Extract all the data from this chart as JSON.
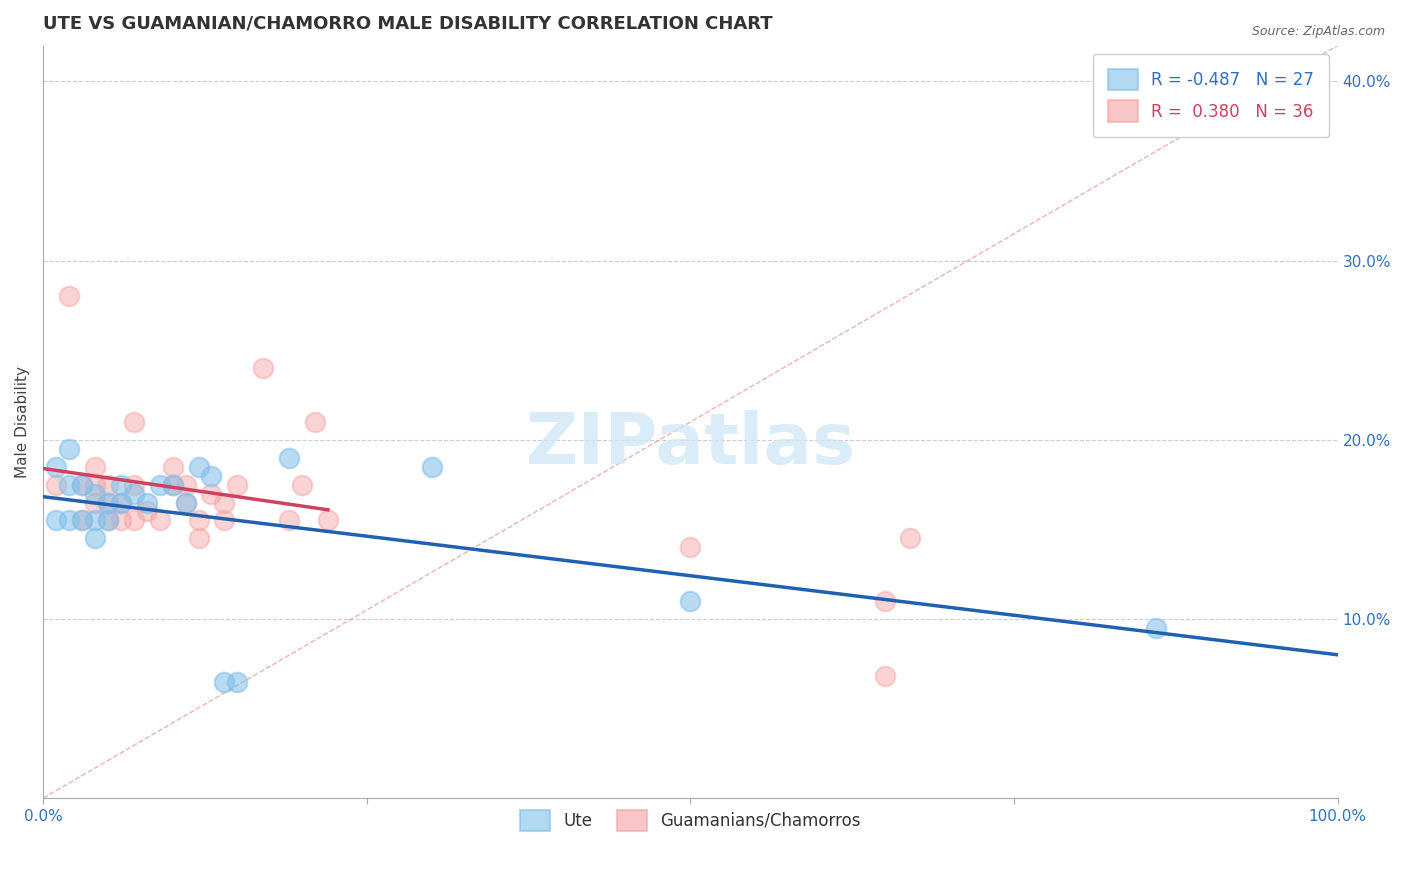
{
  "title": "UTE VS GUAMANIAN/CHAMORRO MALE DISABILITY CORRELATION CHART",
  "source": "Source: ZipAtlas.com",
  "xlabel": "",
  "ylabel": "Male Disability",
  "xlim": [
    0.0,
    1.0
  ],
  "ylim": [
    0.0,
    0.42
  ],
  "xtick_labels": [
    "0.0%",
    "",
    "",
    "",
    "100.0%"
  ],
  "ytick_labels_right": [
    "",
    "10.0%",
    "20.0%",
    "30.0%",
    "40.0%"
  ],
  "grid_color": "#cccccc",
  "background_color": "#ffffff",
  "ute_color": "#7fbfea",
  "guam_color": "#f4a0a0",
  "ute_R": -0.487,
  "ute_N": 27,
  "guam_R": 0.38,
  "guam_N": 36,
  "ute_scatter_x": [
    0.01,
    0.01,
    0.02,
    0.02,
    0.02,
    0.03,
    0.03,
    0.04,
    0.04,
    0.04,
    0.05,
    0.05,
    0.06,
    0.06,
    0.07,
    0.08,
    0.09,
    0.1,
    0.11,
    0.12,
    0.13,
    0.14,
    0.15,
    0.19,
    0.3,
    0.5,
    0.86
  ],
  "ute_scatter_y": [
    0.185,
    0.155,
    0.195,
    0.175,
    0.155,
    0.175,
    0.155,
    0.17,
    0.155,
    0.145,
    0.165,
    0.155,
    0.175,
    0.165,
    0.17,
    0.165,
    0.175,
    0.175,
    0.165,
    0.185,
    0.18,
    0.065,
    0.065,
    0.19,
    0.185,
    0.11,
    0.095
  ],
  "guam_scatter_x": [
    0.01,
    0.02,
    0.03,
    0.03,
    0.04,
    0.04,
    0.04,
    0.05,
    0.05,
    0.05,
    0.06,
    0.06,
    0.07,
    0.07,
    0.07,
    0.08,
    0.09,
    0.1,
    0.1,
    0.11,
    0.11,
    0.12,
    0.12,
    0.13,
    0.14,
    0.14,
    0.15,
    0.17,
    0.19,
    0.2,
    0.21,
    0.22,
    0.5,
    0.65,
    0.65,
    0.67
  ],
  "guam_scatter_y": [
    0.175,
    0.28,
    0.175,
    0.155,
    0.185,
    0.175,
    0.165,
    0.175,
    0.165,
    0.155,
    0.165,
    0.155,
    0.21,
    0.175,
    0.155,
    0.16,
    0.155,
    0.185,
    0.175,
    0.175,
    0.165,
    0.155,
    0.145,
    0.17,
    0.155,
    0.165,
    0.175,
    0.24,
    0.155,
    0.175,
    0.21,
    0.155,
    0.14,
    0.11,
    0.068,
    0.145
  ],
  "diag_color": "#e8a0a0",
  "ute_line_color": "#2060b0",
  "guam_line_color": "#d04060",
  "watermark": "ZIPatlas",
  "legend_ute_label": "Ute",
  "legend_guam_label": "Guamanians/Chamorros",
  "title_fontsize": 13,
  "axis_label_fontsize": 11,
  "tick_fontsize": 11,
  "legend_fontsize": 12
}
